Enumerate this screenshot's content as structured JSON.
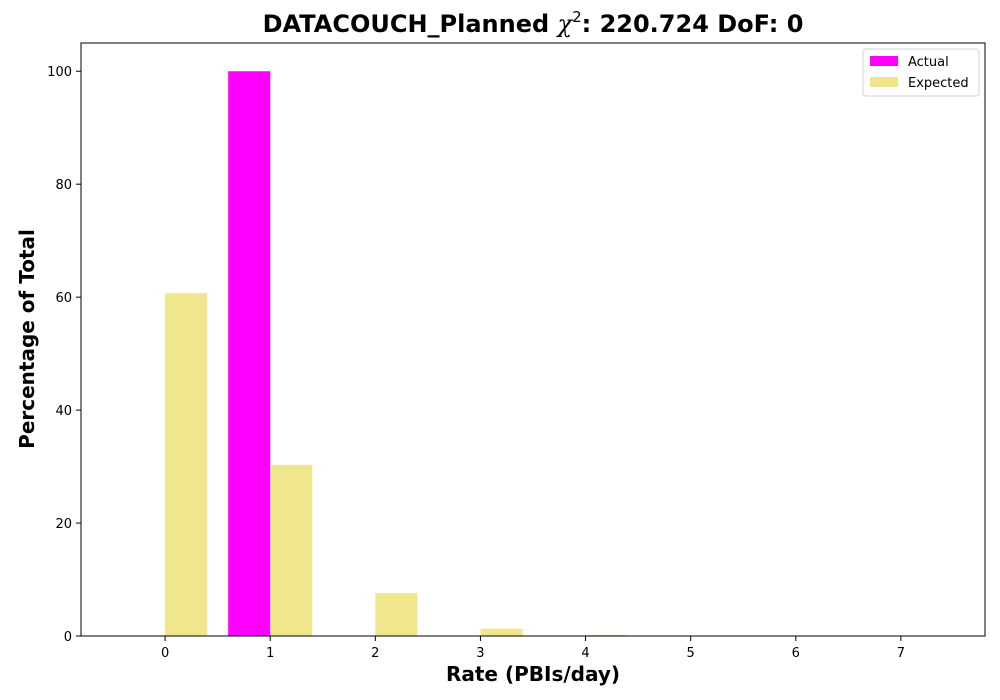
{
  "chart_data": {
    "type": "bar",
    "title": "DATACOUCH_Planned χ²: 220.724 DoF: 0",
    "title_parts": {
      "prefix": "DATACOUCH_Planned ",
      "chi": "χ",
      "sup": "2",
      "suffix": ": 220.724 DoF: 0"
    },
    "xlabel": "Rate (PBIs/day)",
    "ylabel": "Percentage of Total",
    "x": [
      0,
      1,
      2,
      3,
      4,
      5,
      6,
      7
    ],
    "xticks": [
      "0",
      "1",
      "2",
      "3",
      "4",
      "5",
      "6",
      "7"
    ],
    "yticks": [
      "0",
      "20",
      "40",
      "60",
      "80",
      "100"
    ],
    "ytick_values": [
      0,
      20,
      40,
      60,
      80,
      100
    ],
    "xlim": [
      -0.8,
      7.8
    ],
    "ylim": [
      0,
      105
    ],
    "grid": false,
    "legend_position": "top-right",
    "series": [
      {
        "name": "Actual",
        "color": "#ff00ff",
        "offset": "left",
        "values": [
          0,
          100,
          0,
          0,
          0,
          0,
          0,
          0
        ]
      },
      {
        "name": "Expected",
        "color": "#f0e68c",
        "offset": "right",
        "values": [
          60.7,
          30.3,
          7.6,
          1.3,
          0.2,
          0.02,
          0,
          0
        ]
      }
    ]
  }
}
